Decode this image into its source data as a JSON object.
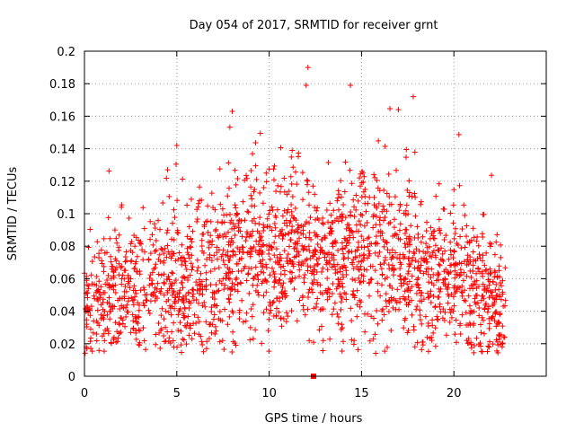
{
  "chart_data": {
    "type": "scatter",
    "title": "Day 054 of 2017, SRMTID for receiver grnt",
    "xlabel": "GPS time / hours",
    "ylabel": "SRMTID / TECUs",
    "xlim": [
      0,
      25
    ],
    "ylim": [
      0,
      0.2
    ],
    "x_ticks": [
      0,
      5,
      10,
      15,
      20
    ],
    "x_tick_labels": [
      "0",
      "5",
      "10",
      "15",
      "20"
    ],
    "y_ticks": [
      0,
      0.02,
      0.04,
      0.06,
      0.08,
      0.1,
      0.12,
      0.14,
      0.16,
      0.18,
      0.2
    ],
    "y_tick_labels": [
      "0",
      "0.02",
      "0.04",
      "0.06",
      "0.08",
      "0.1",
      "0.12",
      "0.14",
      "0.16",
      "0.18",
      "0.2"
    ],
    "grid": true,
    "marker": "+",
    "color": "#ff0000",
    "x_range_hours": [
      0,
      22.8
    ],
    "mean_trend": [
      {
        "x": 0,
        "y": 0.046
      },
      {
        "x": 2,
        "y": 0.052
      },
      {
        "x": 4,
        "y": 0.058
      },
      {
        "x": 6,
        "y": 0.056
      },
      {
        "x": 8,
        "y": 0.072
      },
      {
        "x": 10,
        "y": 0.078
      },
      {
        "x": 11.5,
        "y": 0.08
      },
      {
        "x": 13,
        "y": 0.068
      },
      {
        "x": 15,
        "y": 0.08
      },
      {
        "x": 17,
        "y": 0.072
      },
      {
        "x": 19,
        "y": 0.062
      },
      {
        "x": 21,
        "y": 0.052
      },
      {
        "x": 22.8,
        "y": 0.042
      }
    ],
    "outliers": [
      {
        "x": 12.1,
        "y": 0.19
      },
      {
        "x": 12.0,
        "y": 0.179
      },
      {
        "x": 14.4,
        "y": 0.179
      },
      {
        "x": 17.8,
        "y": 0.172
      },
      {
        "x": 8.0,
        "y": 0.163
      },
      {
        "x": 17.0,
        "y": 0.164
      },
      {
        "x": 5.0,
        "y": 0.142
      },
      {
        "x": 4.5,
        "y": 0.127
      },
      {
        "x": 2.0,
        "y": 0.104
      },
      {
        "x": 12.4,
        "y": 0.0
      }
    ],
    "random_seed": 54
  }
}
